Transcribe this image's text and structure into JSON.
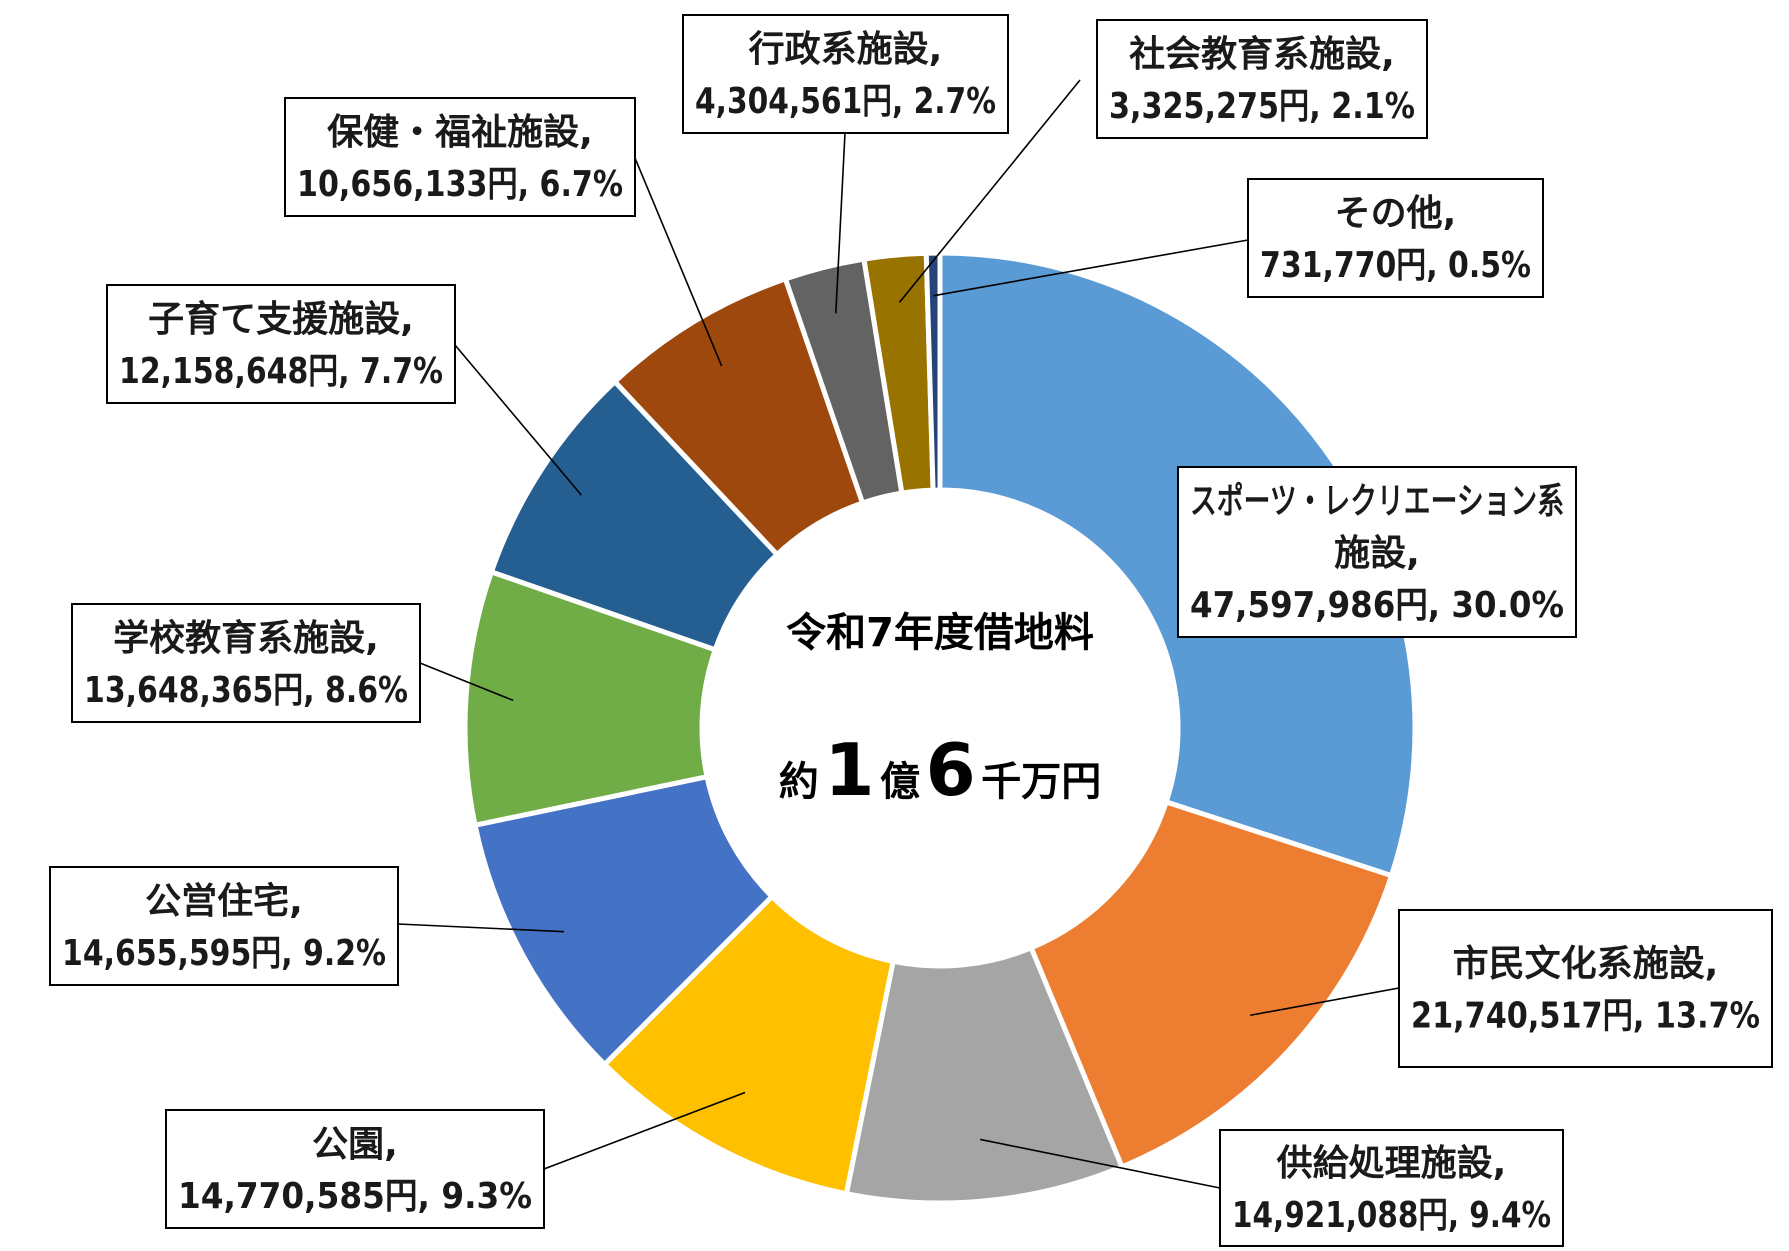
{
  "chart_data": {
    "type": "pie",
    "donut": true,
    "center_title": "令和7年度借地料",
    "center_total": {
      "prefix": "約",
      "num1": "1",
      "unit1": "億",
      "num2": "6",
      "unit2": "千万円"
    },
    "slices": [
      {
        "name": "スポーツ・レクリエーション系施設,",
        "amount": "47,597,986円",
        "percent": "30.0%",
        "value": 47597986,
        "color": "#5B9BD5",
        "label_lines": [
          "スポーツ・レクリエーション系",
          "施設,"
        ]
      },
      {
        "name": "市民文化系施設,",
        "amount": "21,740,517円",
        "percent": "13.7%",
        "value": 21740517,
        "color": "#ED7D31",
        "label_lines": [
          "市民文化系施設,"
        ]
      },
      {
        "name": "供給処理施設,",
        "amount": "14,921,088円",
        "percent": "9.4%",
        "value": 14921088,
        "color": "#A5A5A5",
        "label_lines": [
          "供給処理施設,"
        ]
      },
      {
        "name": "公園,",
        "amount": "14,770,585円",
        "percent": "9.3%",
        "value": 14770585,
        "color": "#FFC000",
        "label_lines": [
          "公園,"
        ]
      },
      {
        "name": "公営住宅,",
        "amount": "14,655,595円",
        "percent": "9.2%",
        "value": 14655595,
        "color": "#4472C4",
        "label_lines": [
          "公営住宅,"
        ]
      },
      {
        "name": "学校教育系施設,",
        "amount": "13,648,365円",
        "percent": "8.6%",
        "value": 13648365,
        "color": "#70AD47",
        "label_lines": [
          "学校教育系施設,"
        ]
      },
      {
        "name": "子育て支援施設,",
        "amount": "12,158,648円",
        "percent": "7.7%",
        "value": 12158648,
        "color": "#255E91",
        "label_lines": [
          "子育て支援施設,"
        ]
      },
      {
        "name": "保健・福祉施設,",
        "amount": "10,656,133円",
        "percent": "6.7%",
        "value": 10656133,
        "color": "#9E480E",
        "label_lines": [
          "保健・福祉施設,"
        ]
      },
      {
        "name": "行政系施設,",
        "amount": "4,304,561円",
        "percent": "2.7%",
        "value": 4304561,
        "color": "#636363",
        "label_lines": [
          "行政系施設,"
        ]
      },
      {
        "name": "社会教育系施設,",
        "amount": "3,325,275円",
        "percent": "2.1%",
        "value": 3325275,
        "color": "#997300",
        "label_lines": [
          "社会教育系施設,"
        ]
      },
      {
        "name": "その他,",
        "amount": "731,770円",
        "percent": "0.5%",
        "value": 731770,
        "color": "#264478",
        "label_lines": [
          "その他,"
        ]
      }
    ]
  }
}
